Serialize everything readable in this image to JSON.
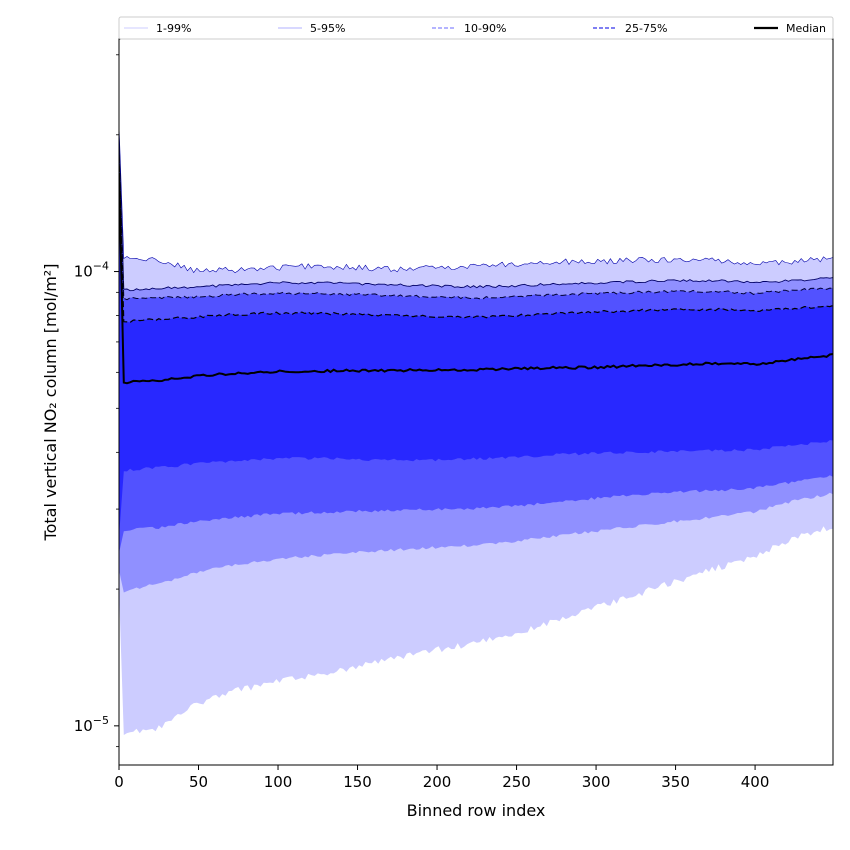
{
  "chart_data": {
    "type": "area",
    "title": "",
    "xlabel": "Binned row index",
    "ylabel": "Total vertical NO₂ column [mol/m²]",
    "yscale": "log",
    "xlim": [
      0,
      449
    ],
    "ylim": [
      8.2e-06,
      0.000325
    ],
    "grid": false,
    "legend_position": "top, spanning width",
    "x_ticks": [
      {
        "value": 0,
        "label": "0"
      },
      {
        "value": 50,
        "label": "50"
      },
      {
        "value": 100,
        "label": "100"
      },
      {
        "value": 150,
        "label": "150"
      },
      {
        "value": 200,
        "label": "200"
      },
      {
        "value": 250,
        "label": "250"
      },
      {
        "value": 300,
        "label": "300"
      },
      {
        "value": 350,
        "label": "350"
      },
      {
        "value": 400,
        "label": "400"
      }
    ],
    "y_major_ticks": [
      {
        "value": 1e-05,
        "base": "10",
        "exponent": "−5"
      },
      {
        "value": 0.0001,
        "base": "10",
        "exponent": "−4"
      }
    ],
    "y_minor_ticks": [
      9e-06,
      2e-05,
      3e-05,
      4e-05,
      5e-05,
      6e-05,
      7e-05,
      8e-05,
      9e-05,
      0.0002,
      0.0003
    ],
    "legend": [
      {
        "label": "1-99%",
        "color": "#ccccff",
        "dash": "solid",
        "width": 1
      },
      {
        "label": "5-95%",
        "color": "#9999ff",
        "dash": "solid",
        "width": 0.8
      },
      {
        "label": "10-90%",
        "color": "#8888ff",
        "dash": "dashed",
        "width": 1.2
      },
      {
        "label": "25-75%",
        "color": "#5555ee",
        "dash": "dashed",
        "width": 1.4
      },
      {
        "label": "Median",
        "color": "#000000",
        "dash": "solid",
        "width": 2.2
      }
    ],
    "x": [
      0,
      3,
      25,
      50,
      75,
      100,
      125,
      150,
      175,
      200,
      225,
      250,
      275,
      300,
      325,
      350,
      375,
      400,
      425,
      449
    ],
    "bands": [
      {
        "name": "1-99%",
        "color": "#ccccff",
        "lower": [
          9.6e-06,
          9.6e-06,
          9.9e-06,
          1.12e-05,
          1.2e-05,
          1.25e-05,
          1.3e-05,
          1.35e-05,
          1.41e-05,
          1.47e-05,
          1.52e-05,
          1.6e-05,
          1.7e-05,
          1.82e-05,
          1.94e-05,
          2.08e-05,
          2.22e-05,
          2.37e-05,
          2.6e-05,
          2.75e-05
        ],
        "upper": [
          0.000107,
          0.000107,
          0.000106,
          0.0001,
          0.000101,
          0.000102,
          0.000103,
          0.000102,
          0.000101,
          0.000102,
          0.000103,
          0.000104,
          0.000105,
          0.000105,
          0.000106,
          0.000106,
          0.000106,
          0.000104,
          0.000105,
          0.000107
        ]
      },
      {
        "name": "5-95%",
        "color": "#9090ff",
        "lower": [
          1.98e-05,
          1.98e-05,
          2.06e-05,
          2.18e-05,
          2.27e-05,
          2.33e-05,
          2.37e-05,
          2.41e-05,
          2.44e-05,
          2.47e-05,
          2.5e-05,
          2.55e-05,
          2.62e-05,
          2.68e-05,
          2.75e-05,
          2.82e-05,
          2.88e-05,
          2.96e-05,
          3.13e-05,
          3.25e-05
        ],
        "upper": [
          9.1e-05,
          9.1e-05,
          9.2e-05,
          9.25e-05,
          9.35e-05,
          9.45e-05,
          9.45e-05,
          9.4e-05,
          9.35e-05,
          9.3e-05,
          9.25e-05,
          9.3e-05,
          9.4e-05,
          9.45e-05,
          9.5e-05,
          9.55e-05,
          9.55e-05,
          9.45e-05,
          9.55e-05,
          9.7e-05
        ]
      },
      {
        "name": "10-90%",
        "color": "#5252ff",
        "lower": [
          2.7e-05,
          2.7e-05,
          2.73e-05,
          2.82e-05,
          2.88e-05,
          2.93e-05,
          2.95e-05,
          2.97e-05,
          2.98e-05,
          3e-05,
          3.01e-05,
          3.05e-05,
          3.11e-05,
          3.17e-05,
          3.23e-05,
          3.28e-05,
          3.3e-05,
          3.33e-05,
          3.45e-05,
          3.55e-05
        ],
        "upper": [
          8.7e-05,
          8.7e-05,
          8.75e-05,
          8.8e-05,
          8.9e-05,
          8.95e-05,
          8.95e-05,
          8.9e-05,
          8.85e-05,
          8.8e-05,
          8.75e-05,
          8.8e-05,
          8.9e-05,
          8.95e-05,
          9e-05,
          9.05e-05,
          9.05e-05,
          8.95e-05,
          9.1e-05,
          9.2e-05
        ]
      },
      {
        "name": "25-75%",
        "color": "#2828ff",
        "lower": [
          3.65e-05,
          3.65e-05,
          3.7e-05,
          3.78e-05,
          3.84e-05,
          3.88e-05,
          3.88e-05,
          3.86e-05,
          3.85e-05,
          3.85e-05,
          3.87e-05,
          3.9e-05,
          3.95e-05,
          3.98e-05,
          4e-05,
          4.03e-05,
          4.03e-05,
          4.05e-05,
          4.15e-05,
          4.25e-05
        ],
        "upper": [
          7.75e-05,
          7.75e-05,
          7.85e-05,
          7.95e-05,
          8.05e-05,
          8.1e-05,
          8.1e-05,
          8.05e-05,
          8e-05,
          7.95e-05,
          7.95e-05,
          8e-05,
          8.1e-05,
          8.15e-05,
          8.2e-05,
          8.25e-05,
          8.25e-05,
          8.2e-05,
          8.3e-05,
          8.4e-05
        ]
      }
    ],
    "median": [
      5.7e-05,
      5.7e-05,
      5.75e-05,
      5.9e-05,
      5.97e-05,
      6.02e-05,
      6.04e-05,
      6.05e-05,
      6.06e-05,
      6.07e-05,
      6.08e-05,
      6.12e-05,
      6.14e-05,
      6.15e-05,
      6.2e-05,
      6.24e-05,
      6.27e-05,
      6.25e-05,
      6.4e-05,
      6.55e-05
    ],
    "row0_spike": {
      "x": 0,
      "upper": 0.00021,
      "median": 0.000165,
      "lower": 2e-05
    }
  }
}
